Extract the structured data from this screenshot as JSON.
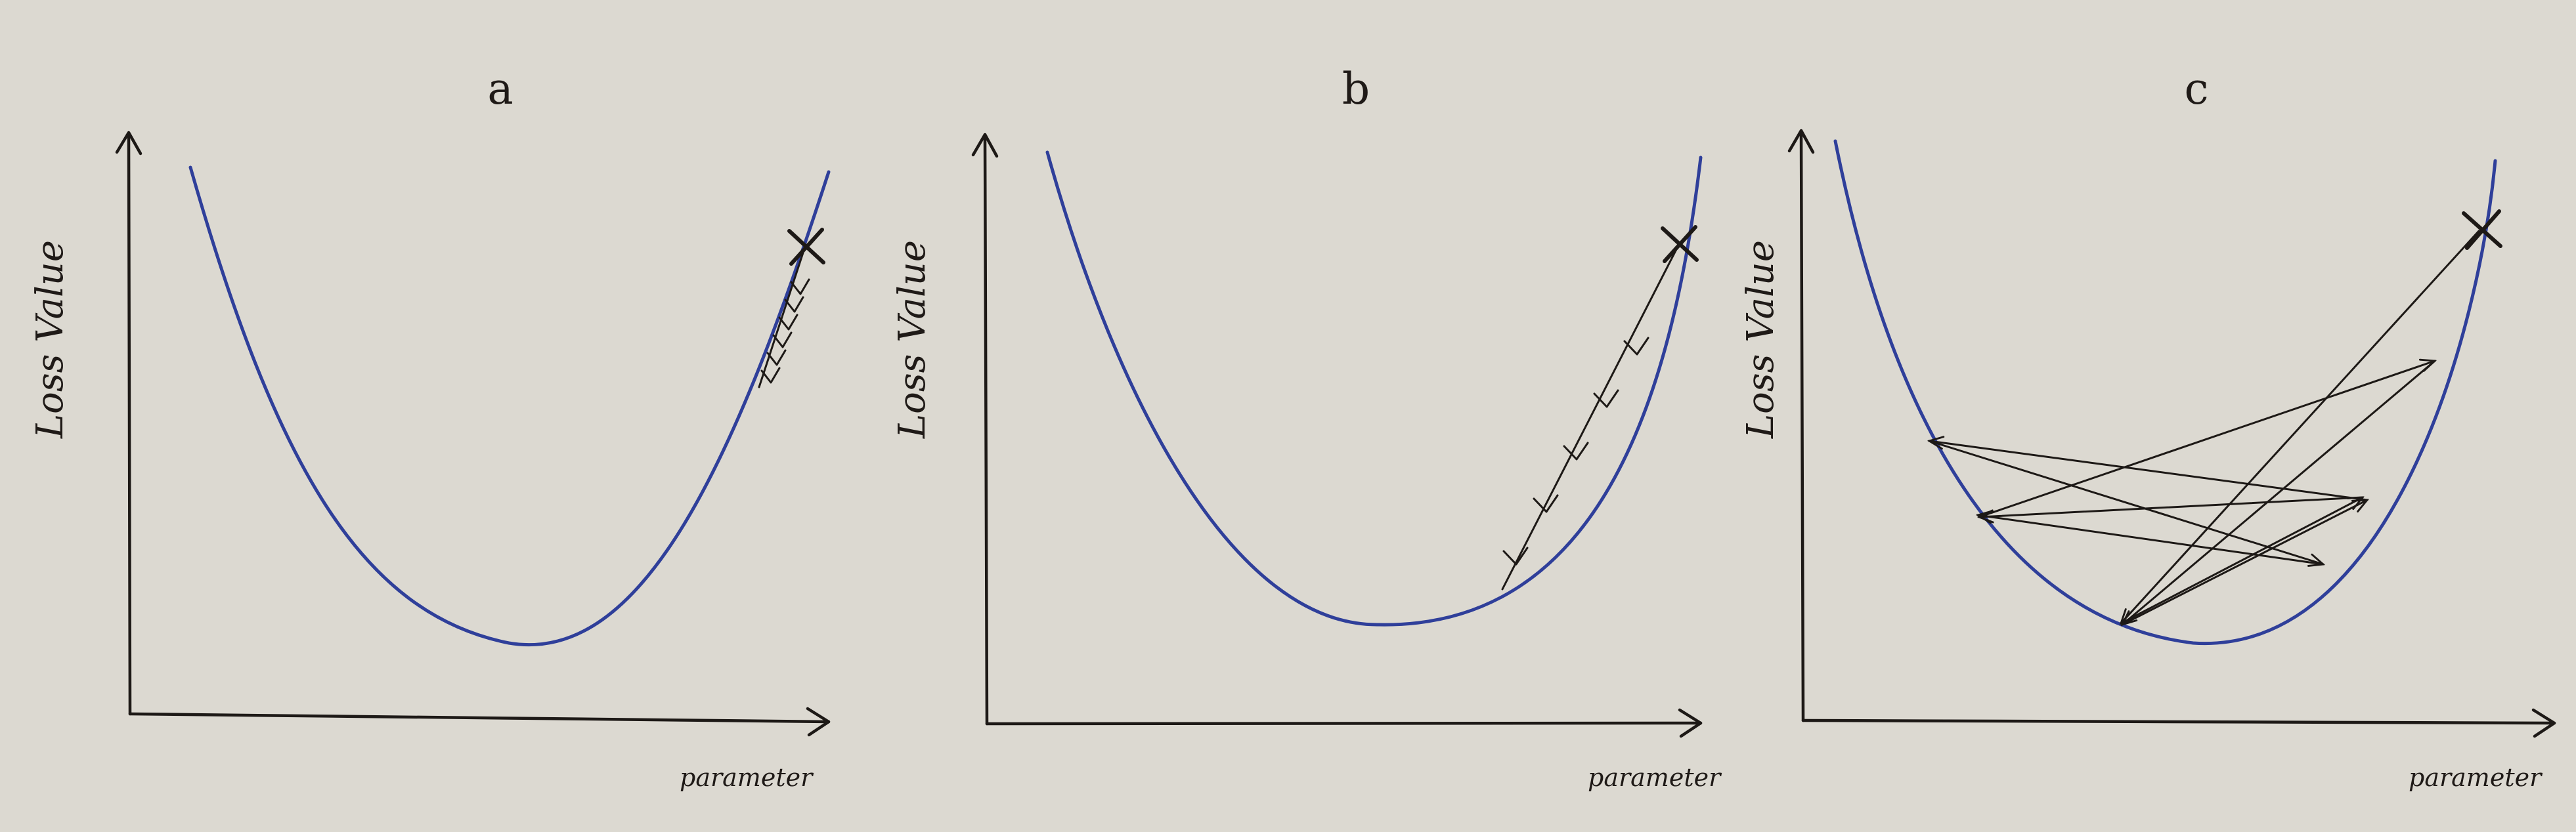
{
  "panels": [
    {
      "label": "a",
      "ylabel": "Loss Value",
      "xlabel": "parameter"
    },
    {
      "label": "b",
      "ylabel": "Loss Value",
      "xlabel": "parameter"
    },
    {
      "label": "c",
      "ylabel": "Loss Value",
      "xlabel": "parameter"
    }
  ],
  "colors": {
    "background": "#dcd9d1",
    "ink": "#1d1916",
    "curve": "#2f3f9a"
  }
}
